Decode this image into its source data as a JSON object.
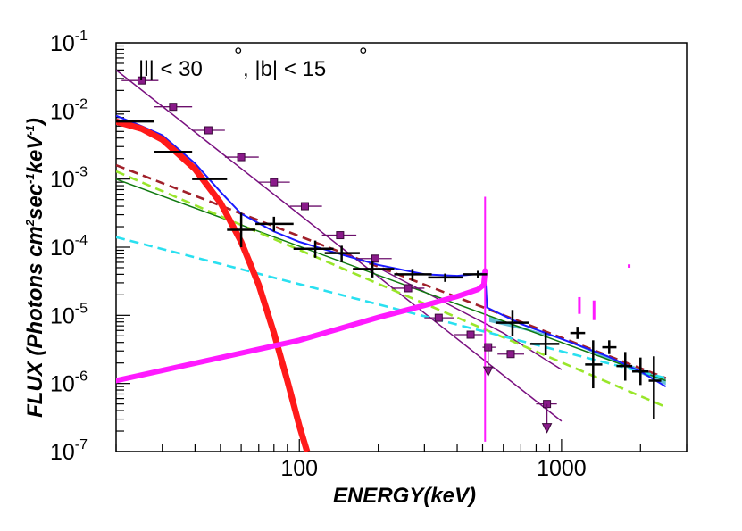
{
  "chart_data": {
    "type": "scatter",
    "title": "|l| < 30 °, |b| < 15 °",
    "annotation": {
      "l_text": "|l| < 30",
      "b_text": ", |b| < 15",
      "degree": "°"
    },
    "xlabel": "ENERGY(keV)",
    "ylabel_parts": {
      "a": "FLUX (Photons cm",
      "a_sup": "2",
      "b": "sec",
      "b_sup": "-1",
      "c": "keV",
      "c_sup": "-1",
      "d": ")"
    },
    "xscale": "log",
    "yscale": "log",
    "xlim": [
      20,
      3000
    ],
    "ylim": [
      1e-07,
      0.1
    ],
    "x_tick_labels": [
      {
        "value": 100,
        "label": "100"
      },
      {
        "value": 1000,
        "label": "1000"
      }
    ],
    "y_tick_labels": [
      {
        "exp": -1,
        "label_base": "10",
        "label_exp": "-1"
      },
      {
        "exp": -2,
        "label_base": "10",
        "label_exp": "-2"
      },
      {
        "exp": -3,
        "label_base": "10",
        "label_exp": "-3"
      },
      {
        "exp": -4,
        "label_base": "10",
        "label_exp": "-4"
      },
      {
        "exp": -5,
        "label_base": "10",
        "label_exp": "-5"
      },
      {
        "exp": -6,
        "label_base": "10",
        "label_exp": "-6"
      },
      {
        "exp": -7,
        "label_base": "10",
        "label_exp": "-7"
      }
    ],
    "series": [
      {
        "name": "Black spectrum points",
        "kind": "errorbar",
        "color": "#000000",
        "points": [
          {
            "x": 24,
            "xlo": 20,
            "xhi": 28,
            "y": 0.007,
            "ylo": 0.007,
            "yhi": 0.007
          },
          {
            "x": 33,
            "xlo": 28,
            "xhi": 39,
            "y": 0.0025,
            "ylo": 0.0025,
            "yhi": 0.0025
          },
          {
            "x": 46,
            "xlo": 39,
            "xhi": 53,
            "y": 0.001,
            "ylo": 0.001,
            "yhi": 0.001
          },
          {
            "x": 60,
            "xlo": 53,
            "xhi": 68,
            "y": 0.00018,
            "ylo": 0.0001,
            "yhi": 0.00032
          },
          {
            "x": 80,
            "xlo": 68,
            "xhi": 95,
            "y": 0.00022,
            "ylo": 0.00017,
            "yhi": 0.00028
          },
          {
            "x": 115,
            "xlo": 95,
            "xhi": 135,
            "y": 9.5e-05,
            "ylo": 7e-05,
            "yhi": 0.000125
          },
          {
            "x": 145,
            "xlo": 125,
            "xhi": 170,
            "y": 8.2e-05,
            "ylo": 6e-05,
            "yhi": 0.000105
          },
          {
            "x": 190,
            "xlo": 160,
            "xhi": 230,
            "y": 4.8e-05,
            "ylo": 3.6e-05,
            "yhi": 6.2e-05
          },
          {
            "x": 270,
            "xlo": 230,
            "xhi": 320,
            "y": 4e-05,
            "ylo": 3.2e-05,
            "yhi": 4.8e-05
          },
          {
            "x": 360,
            "xlo": 310,
            "xhi": 420,
            "y": 3.6e-05,
            "ylo": 3.1e-05,
            "yhi": 4.1e-05
          },
          {
            "x": 480,
            "xlo": 420,
            "xhi": 520,
            "y": 4e-05,
            "ylo": 3.5e-05,
            "yhi": 4.5e-05
          },
          {
            "x": 650,
            "xlo": 560,
            "xhi": 750,
            "y": 7.8e-06,
            "ylo": 5e-06,
            "yhi": 1.2e-05
          },
          {
            "x": 870,
            "xlo": 760,
            "xhi": 980,
            "y": 3.8e-06,
            "ylo": 2.6e-06,
            "yhi": 5.6e-06
          },
          {
            "x": 1150,
            "xlo": 1080,
            "xhi": 1230,
            "y": 5.5e-06,
            "ylo": 4.5e-06,
            "yhi": 6.8e-06
          },
          {
            "x": 1320,
            "xlo": 1230,
            "xhi": 1430,
            "y": 1.9e-06,
            "ylo": 8.5e-07,
            "yhi": 4.3e-06
          },
          {
            "x": 1520,
            "xlo": 1430,
            "xhi": 1620,
            "y": 3.4e-06,
            "ylo": 2.7e-06,
            "yhi": 4.3e-06
          },
          {
            "x": 1750,
            "xlo": 1620,
            "xhi": 1860,
            "y": 1.8e-06,
            "ylo": 1.1e-06,
            "yhi": 2.9e-06
          },
          {
            "x": 2000,
            "xlo": 1860,
            "xhi": 2150,
            "y": 1.5e-06,
            "ylo": 9.5e-07,
            "yhi": 2.4e-06
          },
          {
            "x": 2250,
            "xlo": 2150,
            "xhi": 2400,
            "y": 1.1e-06,
            "ylo": 3e-07,
            "yhi": 2.5e-06
          }
        ]
      },
      {
        "name": "Purple square points",
        "kind": "errorbar_marker",
        "color": "#6b0f6b",
        "marker_fill": "#8a1a8a",
        "points": [
          {
            "x": 25,
            "xlo": 21,
            "xhi": 29,
            "y": 0.028
          },
          {
            "x": 33,
            "xlo": 28,
            "xhi": 39,
            "y": 0.0115
          },
          {
            "x": 45,
            "xlo": 39,
            "xhi": 52,
            "y": 0.0052
          },
          {
            "x": 60,
            "xlo": 52,
            "xhi": 70,
            "y": 0.0021
          },
          {
            "x": 80,
            "xlo": 70,
            "xhi": 92,
            "y": 0.0009
          },
          {
            "x": 105,
            "xlo": 92,
            "xhi": 122,
            "y": 0.0004
          },
          {
            "x": 143,
            "xlo": 122,
            "xhi": 165,
            "y": 0.00015
          },
          {
            "x": 195,
            "xlo": 165,
            "xhi": 225,
            "y": 6.8e-05
          },
          {
            "x": 260,
            "xlo": 225,
            "xhi": 300,
            "y": 2.5e-05
          },
          {
            "x": 340,
            "xlo": 300,
            "xhi": 390,
            "y": 9.2e-06
          },
          {
            "x": 450,
            "xlo": 390,
            "xhi": 500,
            "y": 5.2e-06
          },
          {
            "x": 525,
            "xlo": 500,
            "xhi": 560,
            "y": 3.4e-06,
            "upper_limit": true
          },
          {
            "x": 640,
            "xlo": 570,
            "xhi": 720,
            "y": 2.7e-06
          },
          {
            "x": 880,
            "xlo": 800,
            "xhi": 960,
            "y": 5e-07,
            "upper_limit": true
          }
        ]
      },
      {
        "name": "Purple power law",
        "kind": "line",
        "color": "#7a1080",
        "points": [
          {
            "x": 20,
            "y": 0.04
          },
          {
            "x": 1000,
            "y": 2.8e-07
          }
        ]
      },
      {
        "name": "Purple cutoff line",
        "kind": "line",
        "color": "#7a1080",
        "points": [
          {
            "x": 200,
            "y": 5e-05
          },
          {
            "x": 600,
            "y": 5.5e-06
          },
          {
            "x": 1000,
            "y": 1.6e-06
          }
        ]
      },
      {
        "name": "Red thermal component",
        "kind": "curve",
        "color": "#ff1a1a",
        "points": [
          {
            "x": 20,
            "y": 0.007
          },
          {
            "x": 25,
            "y": 0.0055
          },
          {
            "x": 30,
            "y": 0.0038
          },
          {
            "x": 40,
            "y": 0.0014
          },
          {
            "x": 50,
            "y": 0.00045
          },
          {
            "x": 60,
            "y": 0.00012
          },
          {
            "x": 70,
            "y": 2.8e-05
          },
          {
            "x": 80,
            "y": 5.5e-06
          },
          {
            "x": 90,
            "y": 1.1e-06
          },
          {
            "x": 100,
            "y": 2.4e-07
          },
          {
            "x": 107,
            "y": 1e-07
          }
        ]
      },
      {
        "name": "Blue total model",
        "kind": "curve",
        "color": "#1a1aff",
        "points": [
          {
            "x": 20,
            "y": 0.0085
          },
          {
            "x": 25,
            "y": 0.006
          },
          {
            "x": 30,
            "y": 0.0044
          },
          {
            "x": 40,
            "y": 0.0017
          },
          {
            "x": 50,
            "y": 0.00065
          },
          {
            "x": 60,
            "y": 0.00031
          },
          {
            "x": 80,
            "y": 0.00017
          },
          {
            "x": 100,
            "y": 0.00012
          },
          {
            "x": 150,
            "y": 7.5e-05
          },
          {
            "x": 200,
            "y": 5.5e-05
          },
          {
            "x": 300,
            "y": 4e-05
          },
          {
            "x": 400,
            "y": 3.8e-05
          },
          {
            "x": 500,
            "y": 4.1e-05
          },
          {
            "x": 511,
            "y": 4.2e-05
          },
          {
            "x": 520,
            "y": 1.3e-05
          },
          {
            "x": 700,
            "y": 7.5e-06
          },
          {
            "x": 1000,
            "y": 4.5e-06
          },
          {
            "x": 1500,
            "y": 2.5e-06
          },
          {
            "x": 2000,
            "y": 1.5e-06
          },
          {
            "x": 2500,
            "y": 9e-07
          }
        ]
      },
      {
        "name": "Green power law",
        "kind": "line",
        "color": "#107a10",
        "points": [
          {
            "x": 20,
            "y": 0.001
          },
          {
            "x": 2500,
            "y": 1.1e-06
          }
        ]
      },
      {
        "name": "Brown dashed",
        "kind": "dashed",
        "color": "#a0202a",
        "points": [
          {
            "x": 20,
            "y": 0.0016
          },
          {
            "x": 2500,
            "y": 1.2e-06
          }
        ]
      },
      {
        "name": "Yellow-green dashed",
        "kind": "dashed",
        "color": "#99e62a",
        "points": [
          {
            "x": 20,
            "y": 0.0013
          },
          {
            "x": 2500,
            "y": 4.5e-07
          }
        ]
      },
      {
        "name": "Cyan dashed",
        "kind": "dashed",
        "color": "#2ae0f0",
        "points": [
          {
            "x": 20,
            "y": 0.00014
          },
          {
            "x": 2500,
            "y": 1.2e-06
          }
        ]
      },
      {
        "name": "Magenta positronium continuum",
        "kind": "curve",
        "color": "#ff1aff",
        "points": [
          {
            "x": 20,
            "y": 1.1e-06
          },
          {
            "x": 100,
            "y": 4.3e-06
          },
          {
            "x": 200,
            "y": 9.3e-06
          },
          {
            "x": 300,
            "y": 1.4e-05
          },
          {
            "x": 400,
            "y": 1.9e-05
          },
          {
            "x": 480,
            "y": 2.4e-05
          },
          {
            "x": 505,
            "y": 2.8e-05
          },
          {
            "x": 511,
            "y": 4.5e-05
          }
        ]
      },
      {
        "name": "Magenta 511 keV line",
        "kind": "spike",
        "color": "#ff1aff",
        "x": 511,
        "ylo": 1.4e-07,
        "yhi": 0.00055
      },
      {
        "name": "Magenta line features",
        "kind": "segments",
        "color": "#ff1aff",
        "points": [
          {
            "x": 1170,
            "ylo": 1.05e-05,
            "yhi": 1.85e-05
          },
          {
            "x": 1330,
            "ylo": 8.5e-06,
            "yhi": 1.65e-05
          },
          {
            "x": 1810,
            "ylo": 5e-05,
            "yhi": 5.6e-05
          }
        ]
      },
      {
        "name": "Cyan shaded band",
        "kind": "band",
        "color": "#52b8d0",
        "lower": [
          {
            "x": 530,
            "y": 8e-06
          },
          {
            "x": 1000,
            "y": 4.5e-06
          },
          {
            "x": 2500,
            "y": 9.5e-07
          }
        ],
        "upper": [
          {
            "x": 530,
            "y": 9.5e-06
          },
          {
            "x": 1000,
            "y": 4.5e-06
          },
          {
            "x": 2500,
            "y": 1.2e-06
          }
        ]
      }
    ]
  }
}
